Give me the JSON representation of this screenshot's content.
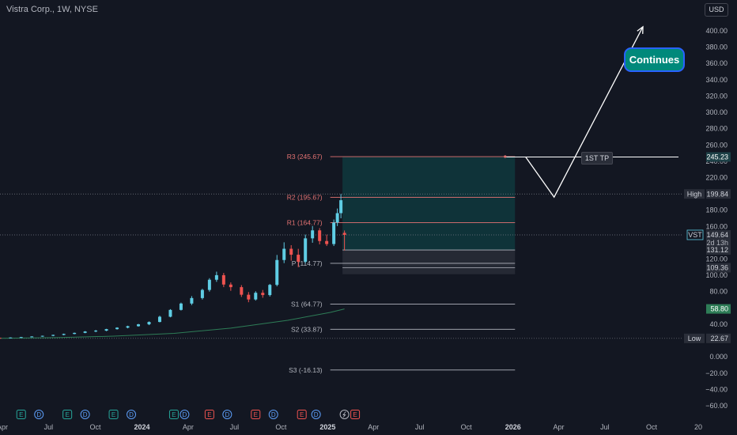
{
  "header": {
    "title": "Vistra Corp., 1W, NYSE",
    "currency": "USD"
  },
  "annotations": {
    "continues": "Continues",
    "first_tp": "1ST TP"
  },
  "colors": {
    "bg": "#131722",
    "up": "#5fcde4",
    "down": "#ef5350",
    "ma": "#2e7d57",
    "pivot_r": "#e57373",
    "pivot_s": "#b2b5be",
    "box_teal": "#0f3b40",
    "box_gray": "#2a2e39"
  },
  "chart_data": {
    "type": "candlestick",
    "symbol": "VST",
    "interval": "1W",
    "exchange": "NYSE",
    "ylim": [
      -60,
      430
    ],
    "y_ticks": [
      -60,
      -40,
      -20,
      0,
      20,
      40,
      60,
      80,
      100,
      120,
      140,
      160,
      180,
      200,
      220,
      240,
      260,
      280,
      300,
      320,
      340,
      360,
      380,
      400
    ],
    "y_tick_labels": [
      "−60.00",
      "−40.00",
      "−20.00",
      "0.000",
      "20.00",
      "40.00",
      "60.00",
      "80.00",
      "100.00",
      "120.00",
      "140.00",
      "160.00",
      "180.00",
      "200.00",
      "220.00",
      "240.00",
      "260.00",
      "280.00",
      "300.00",
      "320.00",
      "340.00",
      "360.00",
      "380.00",
      "400.00"
    ],
    "x_labels": [
      {
        "text": "Apr",
        "date": "2023-04",
        "bold": false
      },
      {
        "text": "Jul",
        "date": "2023-07",
        "bold": false
      },
      {
        "text": "Oct",
        "date": "2023-10",
        "bold": false
      },
      {
        "text": "2024",
        "date": "2024-01",
        "bold": true
      },
      {
        "text": "Apr",
        "date": "2024-04",
        "bold": false
      },
      {
        "text": "Jul",
        "date": "2024-07",
        "bold": false
      },
      {
        "text": "Oct",
        "date": "2024-10",
        "bold": false
      },
      {
        "text": "2025",
        "date": "2025-01",
        "bold": true
      },
      {
        "text": "Apr",
        "date": "2025-04",
        "bold": false
      },
      {
        "text": "Jul",
        "date": "2025-07",
        "bold": false
      },
      {
        "text": "Oct",
        "date": "2025-10",
        "bold": false
      },
      {
        "text": "2026",
        "date": "2026-01",
        "bold": true
      },
      {
        "text": "Apr",
        "date": "2026-04",
        "bold": false
      },
      {
        "text": "Jul",
        "date": "2026-07",
        "bold": false
      },
      {
        "text": "Oct",
        "date": "2026-10",
        "bold": false
      },
      {
        "text": "20",
        "date": "2027-01",
        "bold": false
      }
    ],
    "x_dates": [
      "2023-04",
      "2023-07",
      "2023-10",
      "2024-01",
      "2024-04",
      "2024-07",
      "2024-10",
      "2025-01",
      "2025-04",
      "2025-07",
      "2025-10",
      "2026-01",
      "2026-04",
      "2026-07",
      "2026-10",
      "2027-01"
    ],
    "candles": [
      [
        "2023-03-27",
        23.3,
        23.6,
        22.9,
        23.2
      ],
      [
        "2023-04-17",
        23.2,
        23.9,
        22.8,
        23.7
      ],
      [
        "2023-05-08",
        23.7,
        24.5,
        23.2,
        24.2
      ],
      [
        "2023-05-29",
        24.2,
        25.3,
        23.9,
        25.0
      ],
      [
        "2023-06-19",
        25.0,
        26.0,
        24.6,
        25.8
      ],
      [
        "2023-07-10",
        25.8,
        27.2,
        25.3,
        26.9
      ],
      [
        "2023-07-31",
        26.9,
        28.5,
        26.4,
        28.1
      ],
      [
        "2023-08-21",
        28.1,
        29.8,
        27.7,
        29.4
      ],
      [
        "2023-09-11",
        29.4,
        31.6,
        29.0,
        31.1
      ],
      [
        "2023-10-02",
        31.1,
        33.0,
        30.2,
        32.1
      ],
      [
        "2023-10-23",
        32.1,
        34.4,
        31.5,
        34.0
      ],
      [
        "2023-11-13",
        34.0,
        36.3,
        33.4,
        35.8
      ],
      [
        "2023-12-04",
        35.8,
        38.2,
        35.0,
        37.6
      ],
      [
        "2023-12-25",
        37.6,
        40.5,
        37.0,
        39.9
      ],
      [
        "2024-01-15",
        39.9,
        43.5,
        38.9,
        42.8
      ],
      [
        "2024-02-05",
        42.8,
        50.5,
        42.3,
        49.2
      ],
      [
        "2024-02-26",
        49.2,
        58.5,
        48.5,
        57.6
      ],
      [
        "2024-03-18",
        57.6,
        66.5,
        56.8,
        65.4
      ],
      [
        "2024-04-08",
        65.4,
        74.5,
        63.5,
        72.1
      ],
      [
        "2024-04-29",
        72.1,
        83.5,
        70.3,
        82.1
      ],
      [
        "2024-05-13",
        82.1,
        96.5,
        80.0,
        94.6
      ],
      [
        "2024-05-27",
        94.6,
        104.5,
        92.0,
        100.2
      ],
      [
        "2024-06-10",
        100.2,
        103.0,
        85.5,
        88.7
      ],
      [
        "2024-06-24",
        88.7,
        91.3,
        81.0,
        85.5
      ],
      [
        "2024-07-15",
        85.5,
        88.0,
        73.5,
        76.2
      ],
      [
        "2024-07-29",
        76.2,
        79.5,
        67.0,
        70.4
      ],
      [
        "2024-08-12",
        70.4,
        80.5,
        69.0,
        78.6
      ],
      [
        "2024-08-26",
        78.6,
        82.0,
        72.5,
        75.8
      ],
      [
        "2024-09-09",
        75.8,
        89.5,
        74.0,
        88.3
      ],
      [
        "2024-09-23",
        88.3,
        125.0,
        86.5,
        118.8
      ],
      [
        "2024-10-07",
        118.8,
        140.5,
        115.0,
        132.6
      ],
      [
        "2024-10-21",
        132.6,
        137.0,
        118.0,
        125.3
      ],
      [
        "2024-11-04",
        125.3,
        132.5,
        110.0,
        116.7
      ],
      [
        "2024-11-18",
        116.7,
        150.0,
        114.5,
        145.4
      ],
      [
        "2024-12-02",
        145.4,
        160.5,
        140.0,
        155.2
      ],
      [
        "2024-12-16",
        155.2,
        158.0,
        138.0,
        142.1
      ],
      [
        "2024-12-30",
        142.1,
        150.0,
        136.0,
        138.4
      ],
      [
        "2025-01-13",
        138.4,
        168.5,
        136.0,
        164.7
      ],
      [
        "2025-01-20",
        164.7,
        182.0,
        160.5,
        176.3
      ],
      [
        "2025-01-27",
        176.3,
        199.84,
        170.0,
        192.2
      ],
      [
        "2025-02-03",
        152.1,
        155.0,
        130.5,
        149.64
      ]
    ],
    "ma_points": [
      [
        "2023-03-27",
        22.8
      ],
      [
        "2023-07-17",
        23.6
      ],
      [
        "2023-11-06",
        25.4
      ],
      [
        "2024-03-04",
        28.8
      ],
      [
        "2024-06-24",
        35.2
      ],
      [
        "2024-10-14",
        44.8
      ],
      [
        "2025-01-06",
        54.5
      ],
      [
        "2025-02-03",
        58.8
      ]
    ],
    "pivots": [
      {
        "label": "R3 (245.67)",
        "value": 245.67,
        "kind": "r"
      },
      {
        "label": "R2 (195.67)",
        "value": 195.67,
        "kind": "r"
      },
      {
        "label": "R1 (164.77)",
        "value": 164.77,
        "kind": "r"
      },
      {
        "label": "P (114.77)",
        "value": 114.77,
        "kind": "p"
      },
      {
        "label": "S1 (64.77)",
        "value": 64.77,
        "kind": "s"
      },
      {
        "label": "S2 (33.87)",
        "value": 33.87,
        "kind": "s"
      },
      {
        "label": "S3 (-16.13)",
        "value": -16.13,
        "kind": "s"
      }
    ],
    "pivot_window": [
      "2025-01-06",
      "2026-01-05"
    ],
    "target_box": {
      "top": 245.67,
      "entry": 131.12,
      "stop": 109.36
    },
    "projection": [
      [
        "2025-02-03",
        245.23
      ],
      [
        "2025-12-29",
        245.23
      ],
      [
        "2026-01-26",
        245.23
      ],
      [
        "2026-03-23",
        196.0
      ],
      [
        "2026-09-14",
        405.0
      ]
    ],
    "price_tags": [
      {
        "label": "",
        "value": 245.23,
        "text": "245.23",
        "bg": "#1e4147",
        "color": "#ffffff"
      },
      {
        "label": "High",
        "value": 199.84,
        "text": "199.84",
        "bg": "#2a2e39",
        "color": "#d1d4dc"
      },
      {
        "label": "VST",
        "value": 149.64,
        "text": "149.64",
        "sub": "2d 13h",
        "bg": "#2a2e39",
        "color": "#d1d4dc"
      },
      {
        "label": "",
        "value": 131.12,
        "text": "131.12",
        "bg": "#2a2e39",
        "color": "#d1d4dc"
      },
      {
        "label": "",
        "value": 109.36,
        "text": "109.36",
        "bg": "#2a2e39",
        "color": "#d1d4dc"
      },
      {
        "label": "",
        "value": 58.8,
        "text": "58.80",
        "bg": "#2e7d57",
        "color": "#ffffff"
      },
      {
        "label": "Low",
        "value": 22.67,
        "text": "22.67",
        "bg": "#2a2e39",
        "color": "#d1d4dc"
      }
    ],
    "events": [
      {
        "type": "E",
        "date": "2023-05-08"
      },
      {
        "type": "D",
        "date": "2023-06-12"
      },
      {
        "type": "E",
        "date": "2023-08-07"
      },
      {
        "type": "D",
        "date": "2023-09-11"
      },
      {
        "type": "E",
        "date": "2023-11-06"
      },
      {
        "type": "D",
        "date": "2023-12-11"
      },
      {
        "type": "E",
        "date": "2024-03-04"
      },
      {
        "type": "D",
        "date": "2024-03-25"
      },
      {
        "type": "E",
        "date": "2024-05-13"
      },
      {
        "type": "D",
        "date": "2024-06-17"
      },
      {
        "type": "E",
        "date": "2024-08-12"
      },
      {
        "type": "D",
        "date": "2024-09-16"
      },
      {
        "type": "E",
        "date": "2024-11-11"
      },
      {
        "type": "D",
        "date": "2024-12-09"
      },
      {
        "type": "S",
        "date": "2025-02-03"
      },
      {
        "type": "E",
        "date": "2025-02-24"
      }
    ]
  }
}
